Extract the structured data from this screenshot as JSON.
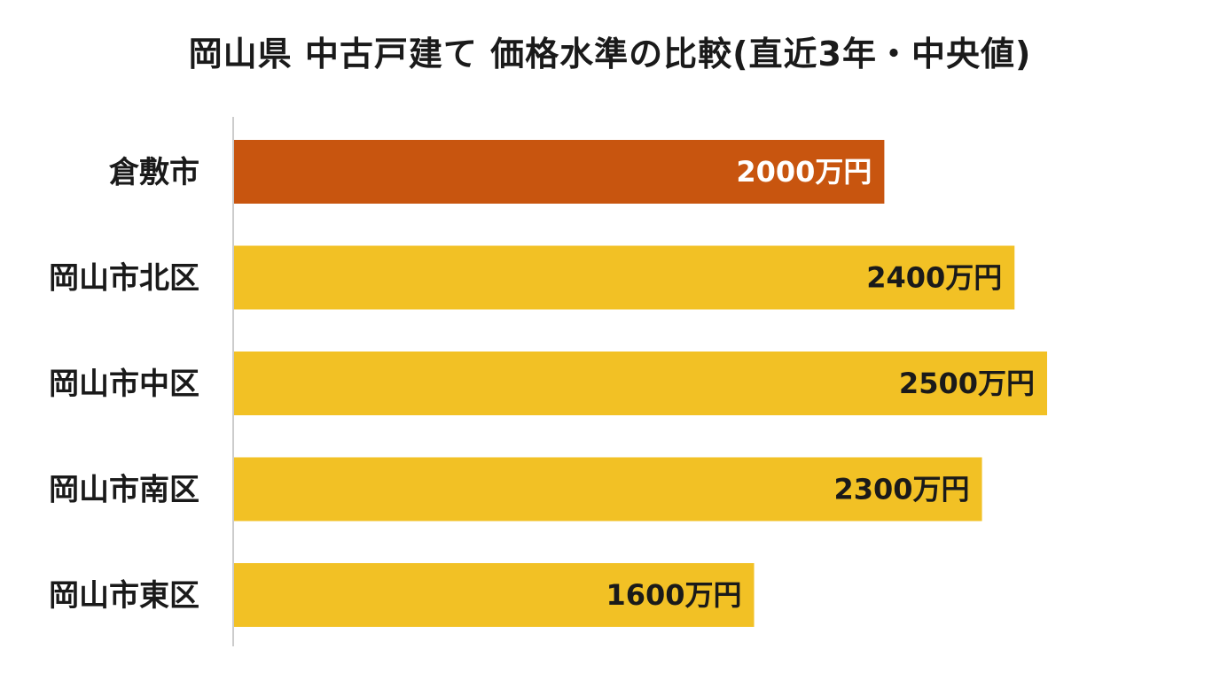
{
  "chart_data": {
    "type": "bar",
    "orientation": "horizontal",
    "title": "岡山県 中古戸建て 価格水準の比較(直近3年・中央値)",
    "categories": [
      "倉敷市",
      "岡山市北区",
      "岡山市中区",
      "岡山市南区",
      "岡山市東区"
    ],
    "values": [
      2000,
      2400,
      2500,
      2300,
      1600
    ],
    "value_labels": [
      "2000万円",
      "2400万円",
      "2500万円",
      "2300万円",
      "1600万円"
    ],
    "unit": "万円",
    "xlim": [
      0,
      2500
    ],
    "grid": false,
    "legend": "none",
    "highlight_index": 0,
    "colors": {
      "highlight": "#C8550F",
      "default": "#F2C125",
      "highlight_text": "#ffffff",
      "default_text": "#1a1a1a",
      "axis": "#cccccc"
    }
  }
}
